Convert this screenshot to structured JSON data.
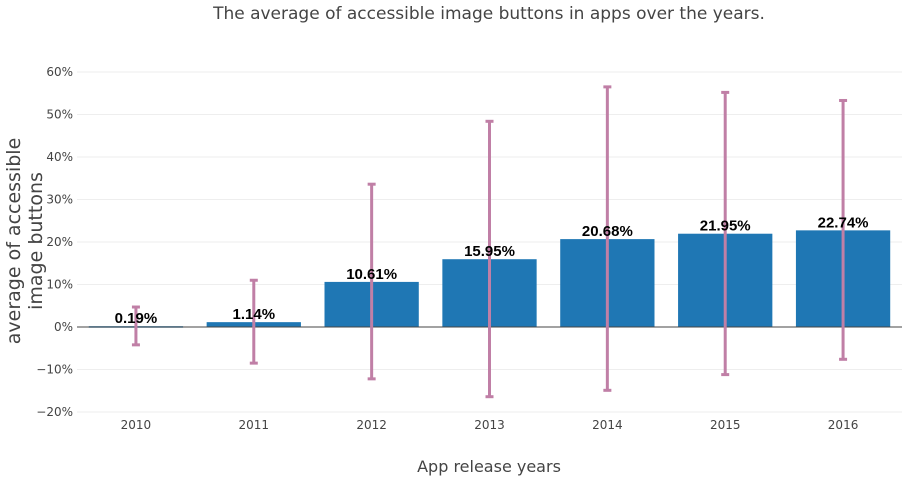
{
  "chart_data": {
    "type": "bar",
    "title": "The average of accessible image buttons in apps over the years.",
    "xlabel": "App release years",
    "ylabel_lines": [
      "average of accessible",
      "image buttons"
    ],
    "categories": [
      "2010",
      "2011",
      "2012",
      "2013",
      "2014",
      "2015",
      "2016"
    ],
    "values": [
      0.19,
      1.14,
      10.61,
      15.95,
      20.68,
      21.95,
      22.74
    ],
    "value_labels": [
      "0.19%",
      "1.14%",
      "10.61%",
      "15.95%",
      "20.68%",
      "21.95%",
      "22.74%"
    ],
    "error_upper": [
      4.7,
      11.0,
      33.6,
      48.4,
      56.5,
      55.2,
      53.3
    ],
    "error_lower": [
      -4.2,
      -8.5,
      -12.2,
      -16.4,
      -14.9,
      -11.2,
      -7.6
    ],
    "ylim": [
      -20,
      60
    ],
    "yticks": [
      -20,
      -10,
      0,
      10,
      20,
      30,
      40,
      50,
      60
    ],
    "ytick_labels": [
      "−20%",
      "−10%",
      "0%",
      "10%",
      "20%",
      "30%",
      "40%",
      "50%",
      "60%"
    ],
    "grid": true,
    "legend": "none",
    "colors": {
      "bar": "#1f77b4",
      "error": "#c07fa6",
      "grid": "#eeeeee",
      "text": "#444444"
    }
  }
}
